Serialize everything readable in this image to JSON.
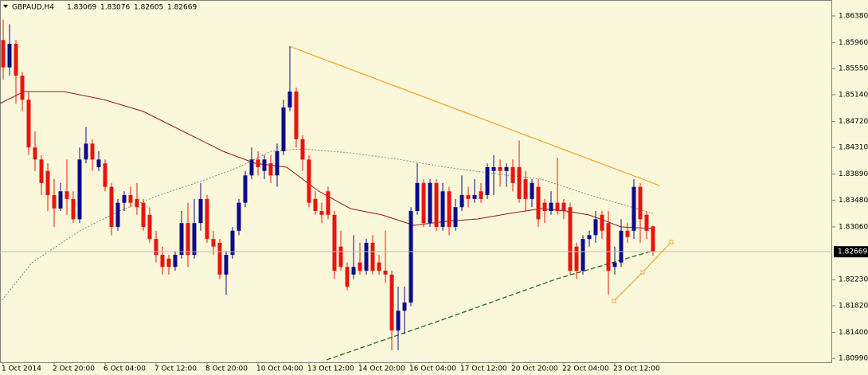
{
  "chart_data": {
    "type": "candlestick",
    "symbol": "GBPAUD,H4",
    "quote": {
      "open": 1.83069,
      "high": 1.83076,
      "low": 1.82605,
      "close": 1.82669
    },
    "categories": [
      "1 Oct 2014",
      null,
      null,
      null,
      null,
      null,
      null,
      null,
      "2 Oct 20:00",
      null,
      null,
      null,
      null,
      null,
      null,
      null,
      "6 Oct 04:00",
      null,
      null,
      null,
      null,
      null,
      null,
      null,
      "7 Oct 12:00",
      null,
      null,
      null,
      null,
      null,
      null,
      null,
      "8 Oct 20:00",
      null,
      null,
      null,
      null,
      null,
      null,
      null,
      "10 Oct 04:00",
      null,
      null,
      null,
      null,
      null,
      null,
      null,
      "13 Oct 12:00",
      null,
      null,
      null,
      null,
      null,
      null,
      null,
      "14 Oct 20:00",
      null,
      null,
      null,
      null,
      null,
      null,
      null,
      "16 Oct 04:00",
      null,
      null,
      null,
      null,
      null,
      null,
      null,
      "17 Oct 12:00",
      null,
      null,
      null,
      null,
      null,
      null,
      null,
      "20 Oct 20:00",
      null,
      null,
      null,
      null,
      null,
      null,
      null,
      "22 Oct 04:00",
      null,
      null,
      null,
      null,
      null,
      null,
      null,
      "23 Oct 12:00",
      null,
      null,
      null,
      null,
      null,
      null
    ],
    "open": [
      1.86,
      1.8557,
      1.8594,
      1.8544,
      1.8506,
      1.8431,
      1.8412,
      1.8394,
      1.8356,
      1.8335,
      1.8362,
      1.835,
      1.8318,
      1.8412,
      1.8437,
      1.84,
      1.8406,
      1.8369,
      1.8306,
      1.8344,
      1.8356,
      1.835,
      1.8344,
      1.8325,
      1.8287,
      1.8262,
      1.8256,
      1.8243,
      1.8262,
      1.8312,
      1.8262,
      1.8312,
      1.835,
      1.8287,
      1.8281,
      1.8231,
      1.8262,
      1.83,
      1.8344,
      1.8387,
      1.8412,
      1.8394,
      1.8406,
      1.8387,
      1.8425,
      1.8494,
      1.8519,
      1.8444,
      1.8412,
      1.835,
      1.8331,
      1.8362,
      1.8325,
      1.8275,
      1.8243,
      1.8231,
      1.825,
      1.8237,
      1.8281,
      1.825,
      1.8237,
      1.8231,
      1.8143,
      1.8174,
      1.8187,
      1.8331,
      1.8375,
      1.8312,
      1.8375,
      1.8306,
      1.8362,
      1.8306,
      1.8337,
      1.8356,
      1.835,
      1.8362,
      1.8356,
      1.8394,
      1.84,
      1.8394,
      1.84,
      1.84,
      1.8381,
      1.835,
      1.8369,
      1.8344,
      1.8331,
      1.8344,
      1.8344,
      1.8337,
      1.8275,
      1.8237,
      1.8287,
      1.8293,
      1.8325,
      1.8312,
      1.8243,
      1.825,
      1.83,
      1.83,
      1.8369,
      1.8325,
      1.83069
    ],
    "high": [
      1.8632,
      1.8625,
      1.86,
      1.855,
      1.8519,
      1.8456,
      1.8419,
      1.8406,
      1.8381,
      1.8375,
      1.8412,
      1.8362,
      1.8431,
      1.8463,
      1.8444,
      1.8425,
      1.8412,
      1.8375,
      1.835,
      1.8362,
      1.8369,
      1.8375,
      1.835,
      1.8337,
      1.83,
      1.8275,
      1.8262,
      1.8268,
      1.8331,
      1.8344,
      1.835,
      1.8375,
      1.8356,
      1.83,
      1.8287,
      1.8268,
      1.8306,
      1.835,
      1.8394,
      1.8431,
      1.8425,
      1.8419,
      1.8419,
      1.8437,
      1.8506,
      1.859,
      1.8525,
      1.845,
      1.8419,
      1.8362,
      1.8344,
      1.8369,
      1.8331,
      1.83,
      1.825,
      1.8293,
      1.8281,
      1.8287,
      1.8293,
      1.8262,
      1.83,
      1.8237,
      1.8212,
      1.8212,
      1.8337,
      1.8406,
      1.8381,
      1.8381,
      1.8381,
      1.8375,
      1.8369,
      1.835,
      1.8387,
      1.8369,
      1.8381,
      1.8375,
      1.8406,
      1.8419,
      1.8412,
      1.8406,
      1.8412,
      1.8442,
      1.8394,
      1.8381,
      1.8381,
      1.835,
      1.8362,
      1.8415,
      1.835,
      1.8344,
      1.8281,
      1.8293,
      1.83,
      1.8331,
      1.8331,
      1.8331,
      1.8275,
      1.8318,
      1.8312,
      1.8381,
      1.8375,
      1.8331,
      1.83076
    ],
    "low": [
      1.8538,
      1.8544,
      1.85,
      1.8488,
      1.8419,
      1.8394,
      1.8356,
      1.8331,
      1.8306,
      1.8331,
      1.8325,
      1.8312,
      1.8312,
      1.8406,
      1.8394,
      1.8394,
      1.8362,
      1.8293,
      1.83,
      1.8331,
      1.8337,
      1.8325,
      1.83,
      1.8281,
      1.825,
      1.8231,
      1.8231,
      1.8237,
      1.8256,
      1.8243,
      1.8256,
      1.83,
      1.8281,
      1.8262,
      1.8224,
      1.8199,
      1.8256,
      1.8293,
      1.8337,
      1.8381,
      1.8387,
      1.8381,
      1.8375,
      1.8369,
      1.8419,
      1.8488,
      1.8431,
      1.8394,
      1.8337,
      1.8325,
      1.8312,
      1.8318,
      1.8224,
      1.8237,
      1.8206,
      1.8224,
      1.8231,
      1.8231,
      1.8231,
      1.8231,
      1.8218,
      1.8112,
      1.8112,
      1.8137,
      1.8181,
      1.8325,
      1.8306,
      1.8306,
      1.83,
      1.83,
      1.8293,
      1.83,
      1.8331,
      1.8337,
      1.8344,
      1.8344,
      1.835,
      1.8356,
      1.8369,
      1.8369,
      1.8362,
      1.8344,
      1.8331,
      1.8337,
      1.8306,
      1.8312,
      1.8325,
      1.8325,
      1.8318,
      1.8231,
      1.8224,
      1.8231,
      1.8275,
      1.8281,
      1.8287,
      1.8199,
      1.8231,
      1.8243,
      1.8281,
      1.8287,
      1.8281,
      1.8287,
      1.82605
    ],
    "close": [
      1.8557,
      1.8594,
      1.8544,
      1.8506,
      1.8431,
      1.8412,
      1.8375,
      1.8356,
      1.8335,
      1.8362,
      1.835,
      1.8318,
      1.8412,
      1.8437,
      1.8412,
      1.8412,
      1.8369,
      1.8306,
      1.8344,
      1.8356,
      1.8344,
      1.8337,
      1.8306,
      1.8287,
      1.8262,
      1.8243,
      1.8243,
      1.8262,
      1.8312,
      1.8262,
      1.8312,
      1.835,
      1.8287,
      1.8275,
      1.8231,
      1.8262,
      1.83,
      1.8344,
      1.8387,
      1.8412,
      1.84,
      1.8412,
      1.8387,
      1.8425,
      1.8494,
      1.8519,
      1.8444,
      1.8412,
      1.8344,
      1.8331,
      1.8325,
      1.8325,
      1.8237,
      1.8243,
      1.8212,
      1.8243,
      1.8237,
      1.8281,
      1.8237,
      1.8237,
      1.8231,
      1.8143,
      1.8174,
      1.8187,
      1.8331,
      1.8375,
      1.8312,
      1.8375,
      1.8306,
      1.8362,
      1.8306,
      1.8337,
      1.8356,
      1.835,
      1.8356,
      1.835,
      1.84,
      1.84,
      1.8394,
      1.84,
      1.8375,
      1.835,
      1.835,
      1.8375,
      1.8318,
      1.8331,
      1.8344,
      1.8331,
      1.8331,
      1.8237,
      1.8237,
      1.8287,
      1.8293,
      1.8318,
      1.83,
      1.8237,
      1.825,
      1.83,
      1.829,
      1.8369,
      1.8318,
      1.83,
      1.82669
    ],
    "up_color": "#0b0b8c",
    "down_color": "#e8140f",
    "ylim": [
      1.8093,
      1.8663
    ],
    "yticks": [
      {
        "value": 1.8638,
        "label": "1.86380"
      },
      {
        "value": 1.8596,
        "label": "1.85960"
      },
      {
        "value": 1.8555,
        "label": "1.85550"
      },
      {
        "value": 1.8514,
        "label": "1.85140"
      },
      {
        "value": 1.8472,
        "label": "1.84720"
      },
      {
        "value": 1.8431,
        "label": "1.84310"
      },
      {
        "value": 1.8389,
        "label": "1.83890"
      },
      {
        "value": 1.8348,
        "label": "1.83480"
      },
      {
        "value": 1.8306,
        "label": "1.83060"
      },
      {
        "value": 1.8223,
        "label": "1.82230"
      },
      {
        "value": 1.8182,
        "label": "1.81820"
      },
      {
        "value": 1.814,
        "label": "1.81400"
      },
      {
        "value": 1.8099,
        "label": "1.80990"
      }
    ],
    "grid": false
  }
}
